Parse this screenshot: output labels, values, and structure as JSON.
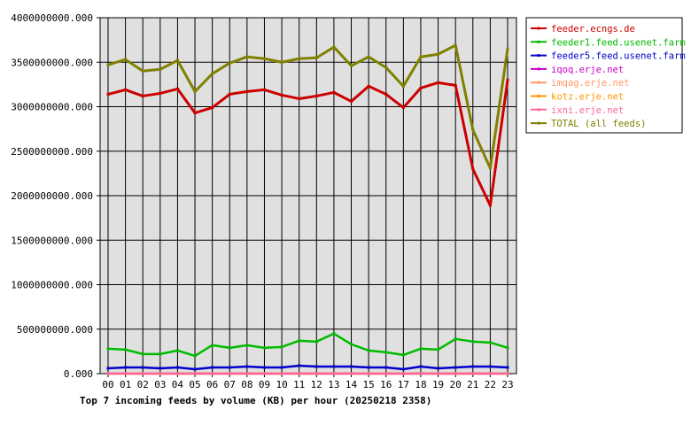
{
  "chart_data": {
    "type": "line",
    "title": "Top 7 incoming feeds by volume (KB) per hour (20250218 2358)",
    "xlabel": "",
    "ylabel": "",
    "x": [
      "00",
      "01",
      "02",
      "03",
      "04",
      "05",
      "06",
      "07",
      "08",
      "09",
      "10",
      "11",
      "12",
      "13",
      "14",
      "15",
      "16",
      "17",
      "18",
      "19",
      "20",
      "21",
      "22",
      "23"
    ],
    "ylim": [
      0,
      4000000000
    ],
    "yticks": [
      {
        "value": 0,
        "label": "0.000"
      },
      {
        "value": 500000000,
        "label": "500000000.000"
      },
      {
        "value": 1000000000,
        "label": "1000000000.000"
      },
      {
        "value": 1500000000,
        "label": "1500000000.000"
      },
      {
        "value": 2000000000,
        "label": "2000000000.000"
      },
      {
        "value": 2500000000,
        "label": "2500000000.000"
      },
      {
        "value": 3000000000,
        "label": "3000000000.000"
      },
      {
        "value": 3500000000,
        "label": "3500000000.000"
      },
      {
        "value": 4000000000,
        "label": "4000000000.000"
      }
    ],
    "grid": true,
    "legend": "right",
    "series": [
      {
        "name": "feeder.ecngs.de",
        "color": "#cc0000",
        "values": [
          3140000000,
          3190000000,
          3120000000,
          3150000000,
          3200000000,
          2930000000,
          2990000000,
          3140000000,
          3170000000,
          3190000000,
          3130000000,
          3090000000,
          3120000000,
          3160000000,
          3060000000,
          3230000000,
          3140000000,
          2990000000,
          3210000000,
          3270000000,
          3240000000,
          2300000000,
          1890000000,
          3300000000
        ]
      },
      {
        "name": "feeder1.feed.usenet.farm",
        "color": "#00bb00",
        "values": [
          280000000,
          270000000,
          220000000,
          220000000,
          260000000,
          200000000,
          320000000,
          290000000,
          320000000,
          290000000,
          300000000,
          370000000,
          360000000,
          450000000,
          330000000,
          260000000,
          240000000,
          210000000,
          280000000,
          270000000,
          390000000,
          360000000,
          350000000,
          290000000
        ]
      },
      {
        "name": "feeder5.feed.usenet.farm",
        "color": "#0000cc",
        "values": [
          60000000,
          70000000,
          70000000,
          60000000,
          70000000,
          50000000,
          70000000,
          70000000,
          80000000,
          70000000,
          70000000,
          90000000,
          80000000,
          80000000,
          80000000,
          70000000,
          70000000,
          50000000,
          80000000,
          60000000,
          70000000,
          80000000,
          80000000,
          70000000
        ]
      },
      {
        "name": "iqoq.erje.net",
        "color": "#cc00cc",
        "values": [
          1000000,
          1000000,
          1000000,
          1000000,
          1000000,
          1000000,
          1000000,
          1000000,
          1000000,
          1000000,
          1000000,
          1000000,
          1000000,
          1000000,
          1000000,
          1000000,
          1000000,
          1000000,
          1000000,
          1000000,
          1000000,
          1000000,
          1000000,
          1000000
        ]
      },
      {
        "name": "imqag.erje.net",
        "color": "#ff9966",
        "values": [
          1000000,
          1000000,
          1000000,
          1000000,
          1000000,
          1000000,
          1000000,
          1000000,
          1000000,
          1000000,
          1000000,
          1000000,
          1000000,
          1000000,
          1000000,
          1000000,
          1000000,
          1000000,
          1000000,
          1000000,
          1000000,
          1000000,
          1000000,
          1000000
        ]
      },
      {
        "name": "kotz.erje.net",
        "color": "#ff9900",
        "values": [
          1000000,
          1000000,
          1000000,
          1000000,
          1000000,
          1000000,
          1000000,
          1000000,
          1000000,
          1000000,
          1000000,
          1000000,
          1000000,
          1000000,
          1000000,
          1000000,
          1000000,
          1000000,
          1000000,
          1000000,
          1000000,
          1000000,
          1000000,
          1000000
        ]
      },
      {
        "name": "ixni.erje.net",
        "color": "#ff6699",
        "values": [
          1000000,
          1000000,
          1000000,
          1000000,
          1000000,
          1000000,
          1000000,
          1000000,
          1000000,
          1000000,
          1000000,
          1000000,
          1000000,
          1000000,
          1000000,
          1000000,
          1000000,
          1000000,
          1000000,
          1000000,
          1000000,
          1000000,
          1000000,
          1000000
        ]
      },
      {
        "name": "TOTAL (all feeds)",
        "color": "#808000",
        "values": [
          3470000000,
          3530000000,
          3400000000,
          3420000000,
          3520000000,
          3170000000,
          3370000000,
          3490000000,
          3560000000,
          3540000000,
          3500000000,
          3540000000,
          3550000000,
          3670000000,
          3460000000,
          3560000000,
          3440000000,
          3230000000,
          3560000000,
          3590000000,
          3690000000,
          2740000000,
          2310000000,
          3650000000
        ]
      }
    ]
  }
}
